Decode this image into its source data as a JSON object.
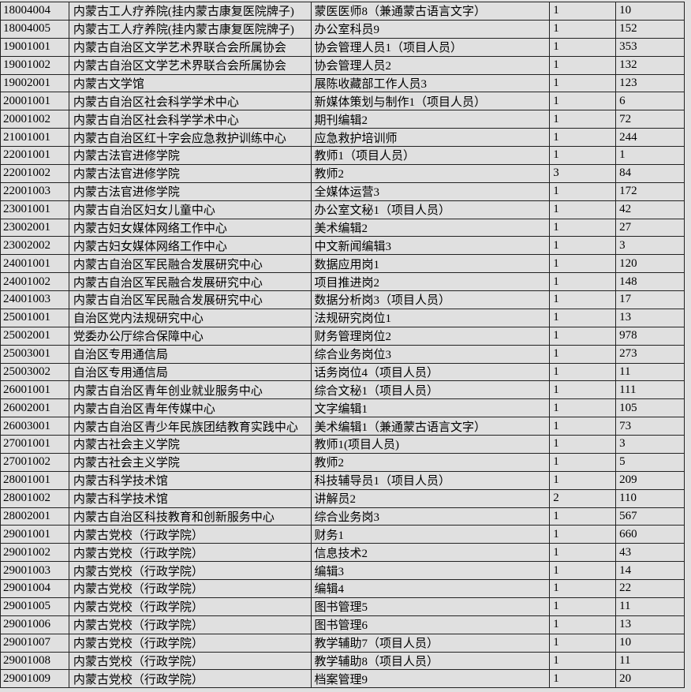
{
  "colors": {
    "background": "#e0e0e0",
    "border": "#222222",
    "text": "#000000"
  },
  "table": {
    "rows": [
      [
        "18004004",
        "内蒙古工人疗养院(挂内蒙古康复医院牌子)",
        "蒙医医师8（兼通蒙古语言文字）",
        "1",
        "10"
      ],
      [
        "18004005",
        "内蒙古工人疗养院(挂内蒙古康复医院牌子)",
        "办公室科员9",
        "1",
        "152"
      ],
      [
        "19001001",
        "内蒙古自治区文学艺术界联合会所属协会",
        "协会管理人员1（项目人员）",
        "1",
        "353"
      ],
      [
        "19001002",
        "内蒙古自治区文学艺术界联合会所属协会",
        "协会管理人员2",
        "1",
        "132"
      ],
      [
        "19002001",
        "内蒙古文学馆",
        "展陈收藏部工作人员3",
        "1",
        "123"
      ],
      [
        "20001001",
        "内蒙古自治区社会科学学术中心",
        "新媒体策划与制作1（项目人员）",
        "1",
        "6"
      ],
      [
        "20001002",
        "内蒙古自治区社会科学学术中心",
        "期刊编辑2",
        "1",
        "72"
      ],
      [
        "21001001",
        "内蒙古自治区红十字会应急救护训练中心",
        "应急救护培训师",
        "1",
        "244"
      ],
      [
        "22001001",
        "内蒙古法官进修学院",
        "教师1（项目人员）",
        "1",
        "1"
      ],
      [
        "22001002",
        "内蒙古法官进修学院",
        "教师2",
        "3",
        "84"
      ],
      [
        "22001003",
        "内蒙古法官进修学院",
        "全媒体运营3",
        "1",
        "172"
      ],
      [
        "23001001",
        "内蒙古自治区妇女儿童中心",
        "办公室文秘1（项目人员）",
        "1",
        "42"
      ],
      [
        "23002001",
        "内蒙古妇女媒体网络工作中心",
        "美术编辑2",
        "1",
        "27"
      ],
      [
        "23002002",
        "内蒙古妇女媒体网络工作中心",
        "中文新闻编辑3",
        "1",
        "3"
      ],
      [
        "24001001",
        "内蒙古自治区军民融合发展研究中心",
        "数据应用岗1",
        "1",
        "120"
      ],
      [
        "24001002",
        "内蒙古自治区军民融合发展研究中心",
        "项目推进岗2",
        "1",
        "148"
      ],
      [
        "24001003",
        "内蒙古自治区军民融合发展研究中心",
        "数据分析岗3（项目人员）",
        "1",
        "17"
      ],
      [
        "25001001",
        "自治区党内法规研究中心",
        "法规研究岗位1",
        "1",
        "13"
      ],
      [
        "25002001",
        "党委办公厅综合保障中心",
        "财务管理岗位2",
        "1",
        "978"
      ],
      [
        "25003001",
        "自治区专用通信局",
        "综合业务岗位3",
        "1",
        "273"
      ],
      [
        "25003002",
        "自治区专用通信局",
        "话务岗位4（项目人员）",
        "1",
        "11"
      ],
      [
        "26001001",
        "内蒙古自治区青年创业就业服务中心",
        "综合文秘1（项目人员）",
        "1",
        "111"
      ],
      [
        "26002001",
        "内蒙古自治区青年传媒中心",
        "文字编辑1",
        "1",
        "105"
      ],
      [
        "26003001",
        "内蒙古自治区青少年民族团结教育实践中心",
        "美术编辑1（兼通蒙古语言文字）",
        "1",
        "73"
      ],
      [
        "27001001",
        "内蒙古社会主义学院",
        "教师1(项目人员)",
        "1",
        "3"
      ],
      [
        "27001002",
        "内蒙古社会主义学院",
        "教师2",
        "1",
        "5"
      ],
      [
        "28001001",
        "内蒙古科学技术馆",
        "科技辅导员1（项目人员）",
        "1",
        "209"
      ],
      [
        "28001002",
        "内蒙古科学技术馆",
        "讲解员2",
        "2",
        "110"
      ],
      [
        "28002001",
        "内蒙古自治区科技教育和创新服务中心",
        "综合业务岗3",
        "1",
        "567"
      ],
      [
        "29001001",
        "内蒙古党校（行政学院）",
        "财务1",
        "1",
        "660"
      ],
      [
        "29001002",
        "内蒙古党校（行政学院）",
        "信息技术2",
        "1",
        "43"
      ],
      [
        "29001003",
        "内蒙古党校（行政学院）",
        "编辑3",
        "1",
        "14"
      ],
      [
        "29001004",
        "内蒙古党校（行政学院）",
        "编辑4",
        "1",
        "22"
      ],
      [
        "29001005",
        "内蒙古党校（行政学院）",
        "图书管理5",
        "1",
        "11"
      ],
      [
        "29001006",
        "内蒙古党校（行政学院）",
        "图书管理6",
        "1",
        "13"
      ],
      [
        "29001007",
        "内蒙古党校（行政学院）",
        "教学辅助7（项目人员）",
        "1",
        "10"
      ],
      [
        "29001008",
        "内蒙古党校（行政学院）",
        "教学辅助8（项目人员）",
        "1",
        "11"
      ],
      [
        "29001009",
        "内蒙古党校（行政学院）",
        "档案管理9",
        "1",
        "20"
      ]
    ]
  }
}
